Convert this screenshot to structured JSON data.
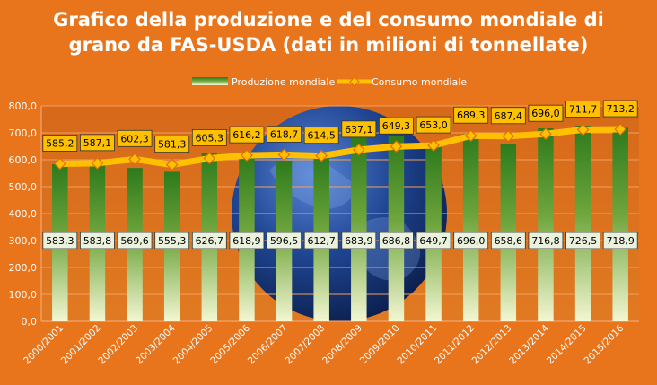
{
  "chart_data": {
    "type": "bar",
    "title_line1": "Grafico della produzione e del consumo mondiale di",
    "title_line2": "grano da FAS-USDA (dati in milioni di tonnellate)",
    "categories": [
      "2000/2001",
      "2001/2002",
      "2002/2003",
      "2003/2004",
      "2004/2005",
      "2005/2006",
      "2006/2007",
      "2007/2008",
      "2008/2009",
      "2009/2010",
      "2010/2011",
      "2011/2012",
      "2012/2013",
      "2013/2014",
      "2014/2015",
      "2015/2016"
    ],
    "series": [
      {
        "name": "Produzione mondiale",
        "kind": "bar",
        "values": [
          583.3,
          583.8,
          569.6,
          555.3,
          626.7,
          618.9,
          596.5,
          612.7,
          683.9,
          686.8,
          649.7,
          696.0,
          658.6,
          716.8,
          726.5,
          718.9
        ],
        "labels": [
          "583,3",
          "583,8",
          "569,6",
          "555,3",
          "626,7",
          "618,9",
          "596,5",
          "612,7",
          "683,9",
          "686,8",
          "649,7",
          "696,0",
          "658,6",
          "716,8",
          "726,5",
          "718,9"
        ]
      },
      {
        "name": "Consumo mondiale",
        "kind": "line",
        "values": [
          585.2,
          587.1,
          602.3,
          581.3,
          605.3,
          616.2,
          618.7,
          614.5,
          637.1,
          649.3,
          653.0,
          689.3,
          687.4,
          696.0,
          711.7,
          713.2
        ],
        "labels": [
          "585,2",
          "587,1",
          "602,3",
          "581,3",
          "605,3",
          "616,2",
          "618,7",
          "614,5",
          "637,1",
          "649,3",
          "653,0",
          "689,3",
          "687,4",
          "696,0",
          "711,7",
          "713,2"
        ]
      }
    ],
    "yticks": [
      "0,0",
      "100,0",
      "200,0",
      "300,0",
      "400,0",
      "500,0",
      "600,0",
      "700,0",
      "800,0"
    ],
    "ylim": [
      0,
      800
    ],
    "grid": true,
    "legend_position": "top",
    "colors": {
      "background": "#e8741c",
      "bar_top": "#2e7d1e",
      "bar_bottom": "#eef2c8",
      "line": "#ffc000",
      "marker": "#ffc000",
      "label_box": "#ffc000",
      "bar_label_box": "#eaf1dd",
      "globe": "#1e3f8a"
    }
  }
}
